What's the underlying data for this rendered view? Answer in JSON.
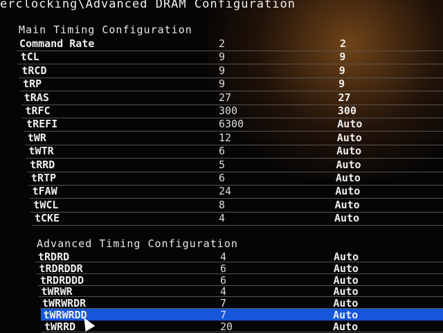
{
  "breadcrumb": "erclocking\\Advanced DRAM Configuration",
  "main_section": {
    "title": "Main Timing Configuration",
    "rows": [
      {
        "label": "Command Rate",
        "current": "2",
        "setting": "2"
      },
      {
        "label": "tCL",
        "current": "9",
        "setting": "9"
      },
      {
        "label": "tRCD",
        "current": "9",
        "setting": "9"
      },
      {
        "label": "tRP",
        "current": "9",
        "setting": "9"
      },
      {
        "label": "tRAS",
        "current": "27",
        "setting": "27"
      },
      {
        "label": "tRFC",
        "current": "300",
        "setting": "300"
      },
      {
        "label": "tREFI",
        "current": "6300",
        "setting": "Auto"
      },
      {
        "label": "tWR",
        "current": "12",
        "setting": "Auto"
      },
      {
        "label": "tWTR",
        "current": "6",
        "setting": "Auto"
      },
      {
        "label": "tRRD",
        "current": "5",
        "setting": "Auto"
      },
      {
        "label": "tRTP",
        "current": "6",
        "setting": "Auto"
      },
      {
        "label": "tFAW",
        "current": "24",
        "setting": "Auto"
      },
      {
        "label": "tWCL",
        "current": "8",
        "setting": "Auto"
      },
      {
        "label": "tCKE",
        "current": "4",
        "setting": "Auto"
      }
    ]
  },
  "advanced_section": {
    "title": "Advanced Timing Configuration",
    "rows": [
      {
        "label": "tRDRD",
        "current": "4",
        "setting": "Auto"
      },
      {
        "label": "tRDRDDR",
        "current": "6",
        "setting": "Auto"
      },
      {
        "label": "tRDRDDD",
        "current": "6",
        "setting": "Auto"
      },
      {
        "label": "tWRWR",
        "current": "4",
        "setting": "Auto"
      },
      {
        "label": "tWRWRDR",
        "current": "7",
        "setting": "Auto"
      },
      {
        "label": "tWRWRDD",
        "current": "7",
        "setting": "Auto",
        "selected": true
      },
      {
        "label": "tWRRD",
        "current": "20",
        "setting": "Auto"
      }
    ]
  },
  "colors": {
    "highlight": "#1656d8",
    "background": "#050505"
  }
}
